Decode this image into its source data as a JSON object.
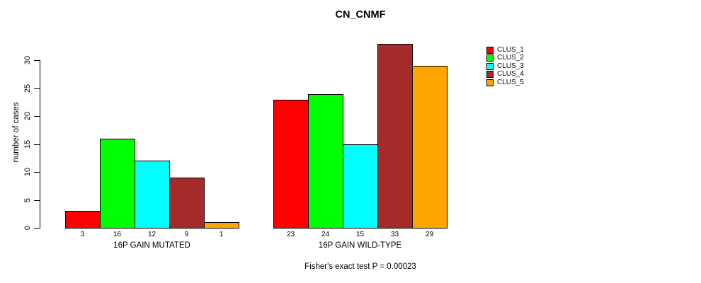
{
  "chart_data": {
    "type": "bar",
    "title": "CN_CNMF",
    "xlabel": "",
    "ylabel": "number of cases",
    "ylim": [
      0,
      33
    ],
    "yticks": [
      0,
      5,
      10,
      15,
      20,
      25,
      30
    ],
    "grid": false,
    "legend_position": "right",
    "bar_value_labels_shown": true,
    "series": [
      {
        "name": "CLUS_1",
        "color": "#FF0000"
      },
      {
        "name": "CLUS_2",
        "color": "#00FF00"
      },
      {
        "name": "CLUS_3",
        "color": "#00FFFF"
      },
      {
        "name": "CLUS_4",
        "color": "#A52A2A"
      },
      {
        "name": "CLUS_5",
        "color": "#FFA500"
      }
    ],
    "groups": [
      {
        "label": "16P GAIN MUTATED",
        "values": [
          3,
          16,
          12,
          9,
          1
        ]
      },
      {
        "label": "16P GAIN WILD-TYPE",
        "values": [
          23,
          24,
          15,
          33,
          29
        ]
      }
    ],
    "annotation": "Fisher's exact test P = 0.00023"
  }
}
